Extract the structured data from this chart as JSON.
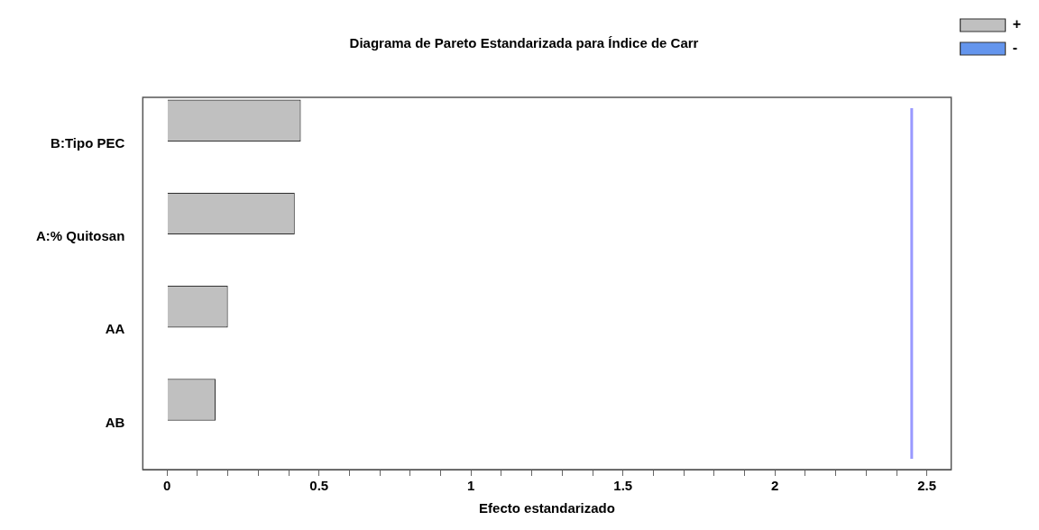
{
  "chart_data": {
    "type": "bar",
    "orientation": "horizontal",
    "title": "Diagrama de Pareto Estandarizada para Índice de Carr",
    "xlabel": "Efecto estandarizado",
    "categories": [
      "B:Tipo PEC",
      "A:% Quitosan",
      "AA",
      "AB"
    ],
    "series": [
      {
        "name": "+",
        "color": "#c0c0c0",
        "values": [
          0.44,
          0.42,
          0.2,
          0.16
        ]
      },
      {
        "name": "-",
        "color": "#6495ed",
        "values": [
          null,
          null,
          null,
          null
        ]
      }
    ],
    "xlim": [
      -0.08,
      2.58
    ],
    "xticks": [
      0,
      {
        "value": 0.1,
        "label": null
      },
      {
        "value": 0.2,
        "label": null
      },
      {
        "value": 0.3,
        "label": null
      },
      {
        "value": 0.4,
        "label": null
      },
      0.5,
      {
        "value": 0.6,
        "label": null
      },
      {
        "value": 0.7,
        "label": null
      },
      {
        "value": 0.8,
        "label": null
      },
      {
        "value": 0.9,
        "label": null
      },
      1,
      {
        "value": 1.1,
        "label": null
      },
      {
        "value": 1.2,
        "label": null
      },
      {
        "value": 1.3,
        "label": null
      },
      {
        "value": 1.4,
        "label": null
      },
      1.5,
      {
        "value": 1.6,
        "label": null
      },
      {
        "value": 1.7,
        "label": null
      },
      {
        "value": 1.8,
        "label": null
      },
      {
        "value": 1.9,
        "label": null
      },
      2,
      {
        "value": 2.1,
        "label": null
      },
      {
        "value": 2.2,
        "label": null
      },
      {
        "value": 2.3,
        "label": null
      },
      {
        "value": 2.4,
        "label": null
      },
      2.5
    ],
    "ref_lines": [
      {
        "axis": "x",
        "value": 2.45,
        "color": "#9999ff"
      }
    ],
    "grid": false,
    "legend": "top right"
  }
}
